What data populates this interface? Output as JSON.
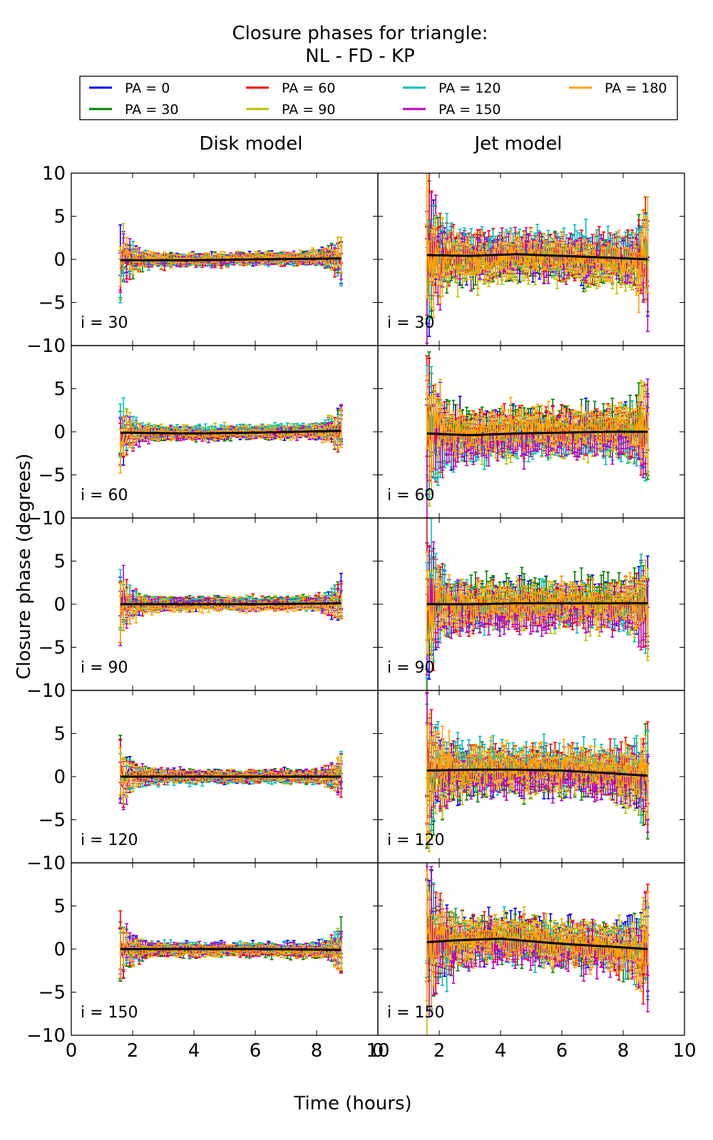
{
  "figure": {
    "title_line1": "Closure phases for triangle:",
    "title_line2": "NL - FD - KP",
    "ylabel": "Closure phase (degrees)",
    "xlabel": "Time (hours)"
  },
  "legend": [
    {
      "label": "PA = 0",
      "color": "#0000ff"
    },
    {
      "label": "PA = 30",
      "color": "#008000"
    },
    {
      "label": "PA = 60",
      "color": "#ff0000"
    },
    {
      "label": "PA = 90",
      "color": "#bfbf00"
    },
    {
      "label": "PA = 120",
      "color": "#00bfbf"
    },
    {
      "label": "PA = 150",
      "color": "#bf00bf"
    },
    {
      "label": "PA = 180",
      "color": "#ffa500"
    }
  ],
  "chart_data": {
    "type": "line",
    "layout": "5 rows x 2 columns small multiples with shared axes",
    "columns": [
      "Disk model",
      "Jet model"
    ],
    "rows": [
      "i = 30",
      "i = 60",
      "i = 90",
      "i = 120",
      "i = 150"
    ],
    "series_names": [
      "PA = 0",
      "PA = 30",
      "PA = 60",
      "PA = 90",
      "PA = 120",
      "PA = 150",
      "PA = 180"
    ],
    "xlim": [
      0,
      10
    ],
    "ylim": [
      -10,
      10
    ],
    "xticks": [
      0,
      2,
      4,
      6,
      8,
      10
    ],
    "yticks": [
      -10,
      -5,
      0,
      5,
      10
    ],
    "time_range": [
      1.6,
      8.8
    ],
    "legend_position": "top, above panels (4 columns)",
    "grid": false,
    "note": "Each panel shows noisy closure-phase curves with error bars for seven position angles, plus a black model line.",
    "model_curves": {
      "Disk model": {
        "i = 30": {
          "x": [
            1.6,
            4,
            6,
            8.8
          ],
          "y": [
            -0.1,
            -0.1,
            0.0,
            0.1
          ]
        },
        "i = 60": {
          "x": [
            1.6,
            4,
            6,
            8.8
          ],
          "y": [
            -0.1,
            -0.2,
            -0.1,
            0.1
          ]
        },
        "i = 90": {
          "x": [
            1.6,
            4,
            6,
            8.8
          ],
          "y": [
            0.0,
            0.0,
            0.0,
            0.1
          ]
        },
        "i = 120": {
          "x": [
            1.6,
            4,
            6,
            8.8
          ],
          "y": [
            0.0,
            0.0,
            0.0,
            0.0
          ]
        },
        "i = 150": {
          "x": [
            1.6,
            4,
            6,
            8.8
          ],
          "y": [
            0.0,
            0.0,
            0.0,
            -0.1
          ]
        }
      },
      "Jet model": {
        "i = 30": {
          "x": [
            1.6,
            3,
            4.5,
            6,
            7.5,
            8.8
          ],
          "y": [
            0.5,
            0.4,
            0.6,
            0.4,
            0.2,
            0.0
          ]
        },
        "i = 60": {
          "x": [
            1.6,
            3,
            4.5,
            6,
            7.5,
            8.8
          ],
          "y": [
            -0.2,
            -0.4,
            -0.2,
            -0.1,
            0.0,
            0.0
          ]
        },
        "i = 90": {
          "x": [
            1.6,
            3,
            4.5,
            6,
            7.5,
            8.8
          ],
          "y": [
            0.0,
            0.0,
            0.1,
            0.1,
            0.1,
            0.1
          ]
        },
        "i = 120": {
          "x": [
            1.6,
            3,
            4.5,
            6,
            7.5,
            8.8
          ],
          "y": [
            0.7,
            0.8,
            0.8,
            0.7,
            0.4,
            0.1
          ]
        },
        "i = 150": {
          "x": [
            1.6,
            2.5,
            4,
            5,
            6,
            7.5,
            8.8
          ],
          "y": [
            0.8,
            1.0,
            1.2,
            0.9,
            0.6,
            0.3,
            0.0
          ]
        }
      }
    },
    "noise_amplitude": {
      "Disk model": {
        "edge": 3.5,
        "middle": 0.6
      },
      "Jet model": {
        "edge": 8,
        "middle": 2.2
      }
    }
  }
}
